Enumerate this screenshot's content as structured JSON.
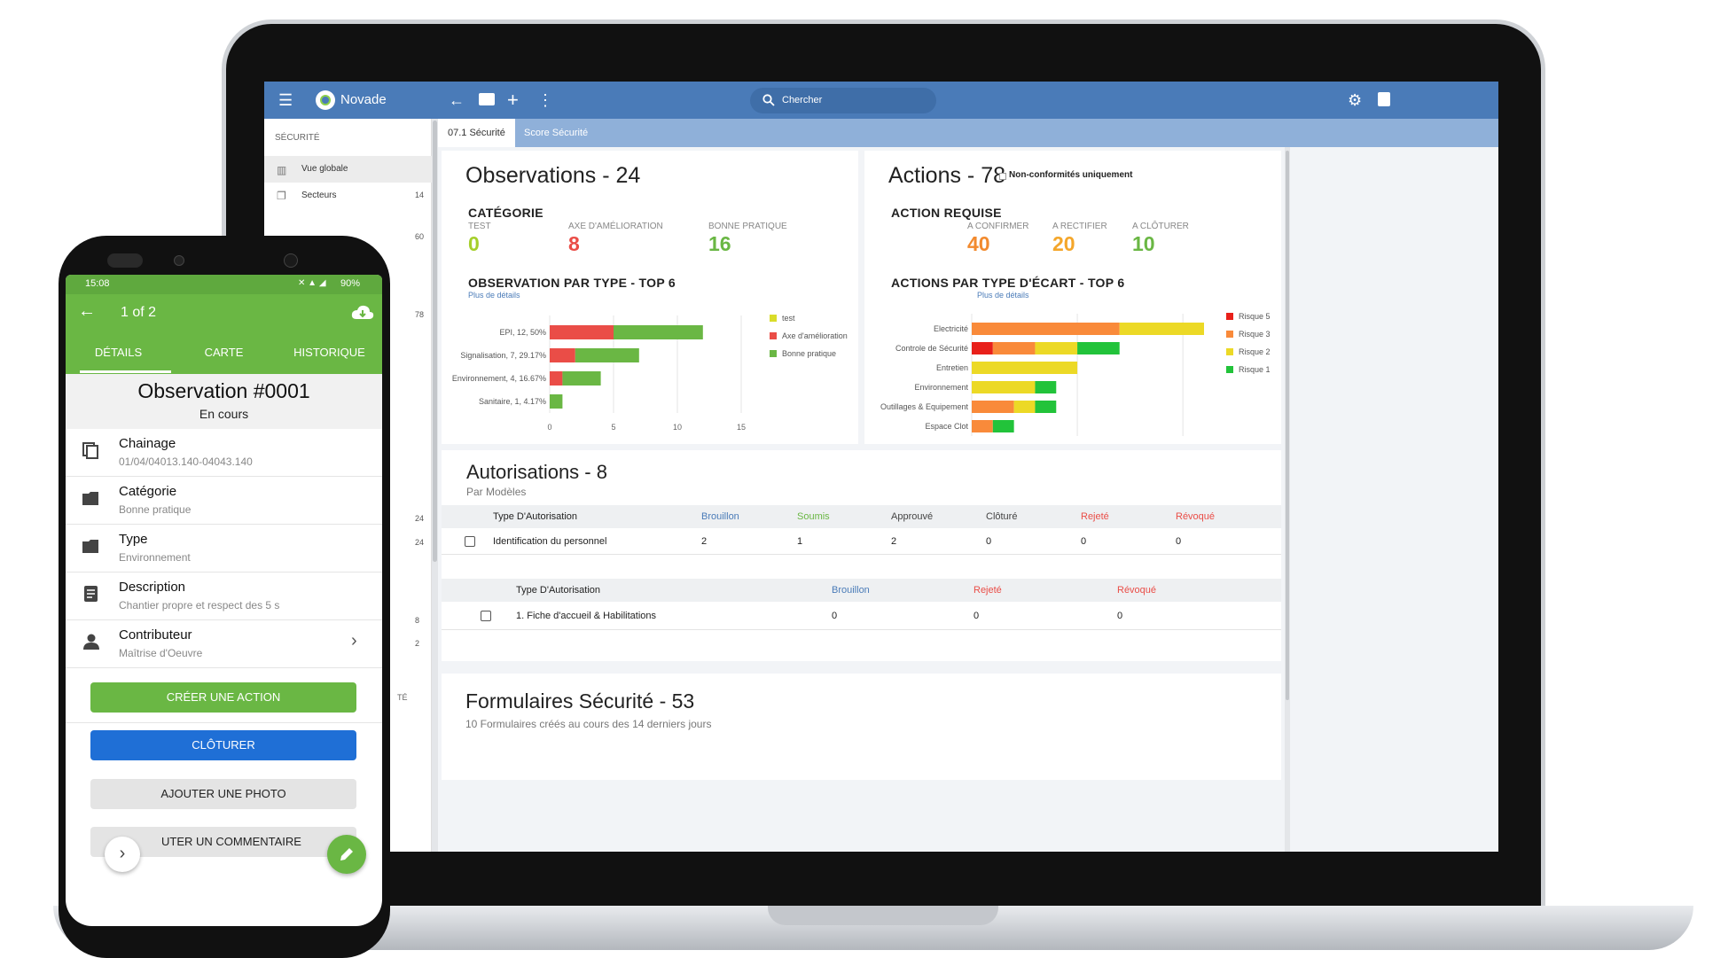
{
  "app": {
    "name": "Novade",
    "search_placeholder": "Chercher"
  },
  "tabs": [
    "07.1 Sécurité",
    "Score Sécurité"
  ],
  "sidebar": {
    "section": "SÉCURITÉ",
    "items": [
      {
        "label": "Vue globale",
        "count": ""
      },
      {
        "label": "Secteurs",
        "count": "14"
      }
    ],
    "counts": [
      "60",
      "78",
      "24",
      "24",
      "8",
      "2"
    ],
    "footer_fragment": "TÉ"
  },
  "observations": {
    "title": "Observations - 24",
    "category_heading": "CATÉGORIE",
    "kpis": [
      {
        "label": "TEST",
        "value": "0",
        "color": "#a5cf2b"
      },
      {
        "label": "AXE D'AMÉLIORATION",
        "value": "8",
        "color": "#ea4d47"
      },
      {
        "label": "BONNE PRATIQUE",
        "value": "16",
        "color": "#6ab744"
      }
    ],
    "chart_heading": "OBSERVATION PAR TYPE - TOP 6",
    "details_link": "Plus de détails"
  },
  "actions": {
    "title": "Actions - 78",
    "filter_label": "Non-conformités uniquement",
    "required_heading": "ACTION REQUISE",
    "kpis": [
      {
        "label": "A CONFIRMER",
        "value": "40",
        "color": "#f28a2e"
      },
      {
        "label": "A RECTIFIER",
        "value": "20",
        "color": "#f4a62a"
      },
      {
        "label": "A CLÔTURER",
        "value": "10",
        "color": "#6ab744"
      }
    ],
    "chart_heading": "ACTIONS PAR TYPE D'ÉCART - TOP 6",
    "details_link": "Plus de détails"
  },
  "chart_data": [
    {
      "type": "bar",
      "orientation": "horizontal",
      "stacked": true,
      "categories": [
        "EPI, 12, 50%",
        "Signalisation, 7, 29.17%",
        "Environnement, 4, 16.67%",
        "Sanitaire, 1, 4.17%"
      ],
      "series": [
        {
          "name": "test",
          "color": "#d9dc2a",
          "values": [
            0,
            0,
            0,
            0
          ]
        },
        {
          "name": "Axe d'amélioration",
          "color": "#ea4d47",
          "values": [
            5,
            2,
            1,
            0
          ]
        },
        {
          "name": "Bonne pratique",
          "color": "#6ab744",
          "values": [
            7,
            5,
            3,
            1
          ]
        }
      ],
      "xlim": [
        0,
        15
      ],
      "xticks": [
        "0",
        "5",
        "10",
        "15"
      ],
      "legend_position": "right"
    },
    {
      "type": "bar",
      "orientation": "horizontal",
      "stacked": true,
      "categories": [
        "Electricité",
        "Controle de Sécurité",
        "Entretien",
        "Environnement",
        "Outillages & Equipement",
        "Espace Clot"
      ],
      "series": [
        {
          "name": "Risque 5",
          "color": "#e8201a",
          "values": [
            0,
            1,
            0,
            0,
            0,
            0
          ]
        },
        {
          "name": "Risque 3",
          "color": "#f98a3a",
          "values": [
            7,
            2,
            0,
            0,
            2,
            1
          ]
        },
        {
          "name": "Risque 2",
          "color": "#ecd926",
          "values": [
            4,
            2,
            5,
            3,
            1,
            0
          ]
        },
        {
          "name": "Risque 1",
          "color": "#22c33a",
          "values": [
            0,
            2,
            0,
            1,
            1,
            1
          ]
        }
      ],
      "xlim": [
        0,
        11
      ],
      "xticks": [
        "0",
        "5",
        "10"
      ],
      "legend_position": "right"
    }
  ],
  "autorisations": {
    "title": "Autorisations - 8",
    "subtitle": "Par Modèles",
    "table1": {
      "headers": [
        "Type D'Autorisation",
        "Brouillon",
        "Soumis",
        "Approuvé",
        "Clôturé",
        "Rejeté",
        "Révoqué"
      ],
      "header_colors": [
        "#222",
        "#4a7bb8",
        "#6ab744",
        "#444",
        "#444",
        "#ea4d47",
        "#ea4d47"
      ],
      "rows": [
        [
          "Identification du personnel",
          "2",
          "1",
          "2",
          "0",
          "0",
          "0"
        ]
      ]
    },
    "table2": {
      "headers": [
        "Type D'Autorisation",
        "Brouillon",
        "Rejeté",
        "Révoqué"
      ],
      "header_colors": [
        "#222",
        "#4a7bb8",
        "#ea4d47",
        "#ea4d47"
      ],
      "rows": [
        [
          "1. Fiche d'accueil & Habilitations",
          "0",
          "0",
          "0"
        ]
      ]
    }
  },
  "formulaires": {
    "title": "Formulaires Sécurité - 53",
    "subtitle": "10 Formulaires créés au cours des 14 derniers jours"
  },
  "phone": {
    "status_time": "15:08",
    "battery": "90%",
    "pager": "1 of 2",
    "tabs": [
      "DÉTAILS",
      "CARTE",
      "HISTORIQUE"
    ],
    "heading": "Observation #0001",
    "status": "En cours",
    "fields": [
      {
        "title": "Chainage",
        "sub": "01/04/04013.140-04043.140",
        "icon": "copy-icon"
      },
      {
        "title": "Catégorie",
        "sub": "Bonne pratique",
        "icon": "folder-icon"
      },
      {
        "title": "Type",
        "sub": "Environnement",
        "icon": "folder-icon"
      },
      {
        "title": "Description",
        "sub": "Chantier propre et respect des 5 s",
        "icon": "notes-icon"
      },
      {
        "title": "Contributeur",
        "sub": "Maîtrise d'Oeuvre",
        "icon": "person-icon"
      }
    ],
    "buttons": {
      "create_action": "CRÉER UNE ACTION",
      "close": "CLÔTURER",
      "add_photo": "AJOUTER UNE PHOTO",
      "add_comment": "UTER UN COMMENTAIRE"
    },
    "colors": {
      "primary_green": "#6ab744",
      "primary_blue": "#1f6fd6"
    }
  },
  "colors": {
    "topbar": "#4a7bb8",
    "tabsbar": "#8fb0d9"
  }
}
